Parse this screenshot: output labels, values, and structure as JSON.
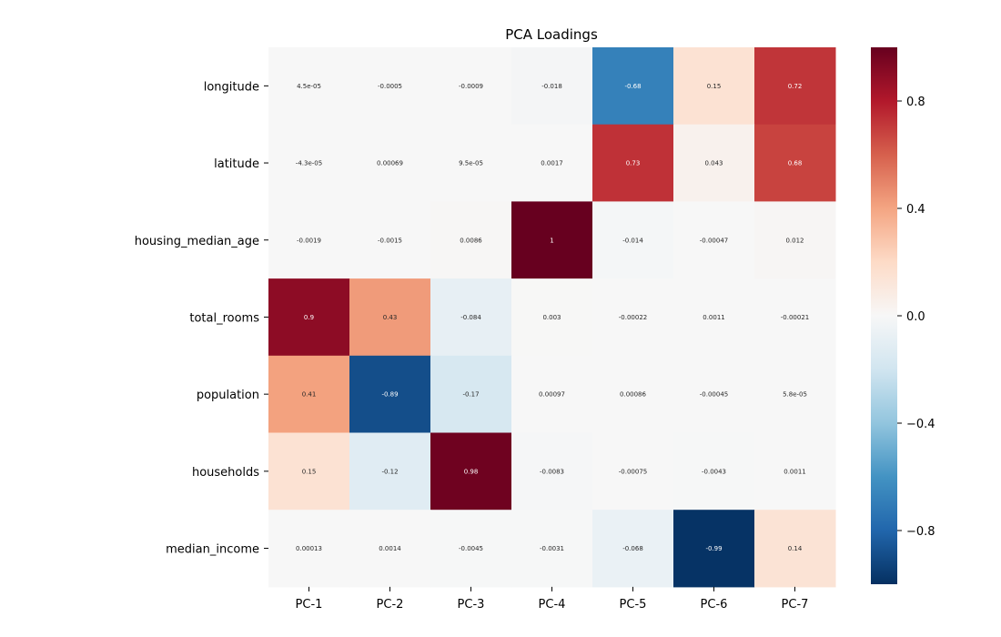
{
  "chart_data": {
    "type": "heatmap",
    "title": "PCA Loadings",
    "xlabel": "",
    "ylabel": "",
    "x_categories": [
      "PC-1",
      "PC-2",
      "PC-3",
      "PC-4",
      "PC-5",
      "PC-6",
      "PC-7"
    ],
    "y_categories": [
      "longitude",
      "latitude",
      "housing_median_age",
      "total_rooms",
      "population",
      "households",
      "median_income"
    ],
    "values": [
      [
        4.5e-05,
        -0.0005,
        -0.0009,
        -0.018,
        -0.68,
        0.15,
        0.72
      ],
      [
        -4.3e-05,
        0.00069,
        9.5e-05,
        0.0017,
        0.73,
        0.043,
        0.68
      ],
      [
        -0.0019,
        -0.0015,
        0.0086,
        1,
        -0.014,
        -0.00047,
        0.012
      ],
      [
        0.9,
        0.43,
        -0.084,
        0.003,
        -0.00022,
        0.0011,
        -0.00021
      ],
      [
        0.41,
        -0.89,
        -0.17,
        0.00097,
        0.00086,
        -0.00045,
        5.8e-05
      ],
      [
        0.15,
        -0.12,
        0.98,
        -0.0083,
        -0.00075,
        -0.0043,
        0.0011
      ],
      [
        0.00013,
        0.0014,
        -0.0045,
        -0.0031,
        -0.068,
        -0.99,
        0.14
      ]
    ],
    "annotations": [
      [
        "4.5e-05",
        "-0.0005",
        "-0.0009",
        "-0.018",
        "-0.68",
        "0.15",
        "0.72"
      ],
      [
        "-4.3e-05",
        "0.00069",
        "9.5e-05",
        "0.0017",
        "0.73",
        "0.043",
        "0.68"
      ],
      [
        "-0.0019",
        "-0.0015",
        "0.0086",
        "1",
        "-0.014",
        "-0.00047",
        "0.012"
      ],
      [
        "0.9",
        "0.43",
        "-0.084",
        "0.003",
        "-0.00022",
        "0.0011",
        "-0.00021"
      ],
      [
        "0.41",
        "-0.89",
        "-0.17",
        "0.00097",
        "0.00086",
        "-0.00045",
        "5.8e-05"
      ],
      [
        "0.15",
        "-0.12",
        "0.98",
        "-0.0083",
        "-0.00075",
        "-0.0043",
        "0.0011"
      ],
      [
        "0.00013",
        "0.0014",
        "-0.0045",
        "-0.0031",
        "-0.068",
        "-0.99",
        "0.14"
      ]
    ],
    "colormap": "RdBu_r",
    "vmin": -1,
    "vmax": 1,
    "colorbar_ticks": [
      0.8,
      0.4,
      0.0,
      -0.4,
      -0.8
    ],
    "colorbar_tick_labels": [
      "0.8",
      "0.4",
      "0.0",
      "−0.4",
      "−0.8"
    ],
    "grid": false
  }
}
